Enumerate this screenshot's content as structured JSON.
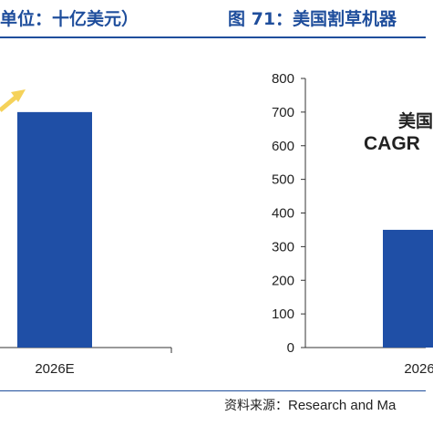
{
  "left_panel": {
    "title": "单位：十亿美元）"
  },
  "right_panel": {
    "title": "图 71：美国割草机器"
  },
  "source": {
    "prefix": "资料来源：",
    "text": "Research and Ma"
  },
  "chart_data": [
    {
      "type": "bar",
      "categories": [
        "2026E"
      ],
      "values": [
        700
      ],
      "ylim": [
        0,
        800
      ],
      "bar_color": "#1f4fa6",
      "arrow_color": "#f5d25a"
    },
    {
      "type": "bar",
      "categories": [
        "2026"
      ],
      "values": [
        350
      ],
      "ylim": [
        0,
        800
      ],
      "yticks": [
        0,
        100,
        200,
        300,
        400,
        500,
        600,
        700,
        800
      ],
      "annotation": [
        "美国",
        "CAGR"
      ],
      "bar_color": "#1f4fa6"
    }
  ]
}
